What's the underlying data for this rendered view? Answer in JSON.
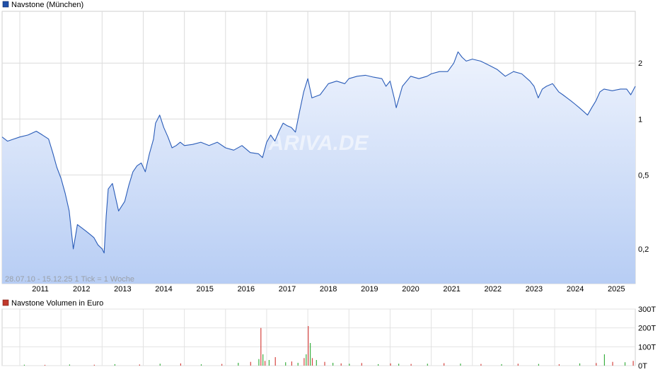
{
  "chart_data": [
    {
      "type": "area",
      "legend": {
        "label": "Navstone (München)",
        "color": "#1f4fa8"
      },
      "y_scale": "log",
      "ylim": [
        0.13,
        3.8
      ],
      "y_ticks": [
        {
          "value": 0.2,
          "label": "0,2"
        },
        {
          "value": 0.5,
          "label": "0,5"
        },
        {
          "value": 1,
          "label": "1"
        },
        {
          "value": 2,
          "label": "2"
        }
      ],
      "x_range": [
        2010.57,
        2025.96
      ],
      "x_ticks": [
        "2011",
        "2012",
        "2013",
        "2014",
        "2015",
        "2016",
        "2017",
        "2018",
        "2019",
        "2020",
        "2021",
        "2022",
        "2023",
        "2024",
        "2025"
      ],
      "info_text": "28.07.10 - 15.12.25   1 Tick = 1 Woche",
      "watermark": "ARIVA.DE",
      "grid": true,
      "line_color": "#2a5cb8",
      "fill_top": "#eef3fd",
      "fill_bottom": "#b7cdf4",
      "series": [
        {
          "x": [
            2010.57,
            2010.7,
            2010.85,
            2011.0,
            2011.2,
            2011.4,
            2011.55,
            2011.7,
            2011.8,
            2011.9,
            2012.0,
            2012.1,
            2012.2,
            2012.3,
            2012.4,
            2012.5,
            2012.6,
            2012.7,
            2012.8,
            2012.9,
            2013.0,
            2013.05,
            2013.1,
            2013.15,
            2013.25,
            2013.4,
            2013.55,
            2013.65,
            2013.75,
            2013.85,
            2013.95,
            2014.05,
            2014.15,
            2014.25,
            2014.3,
            2014.4,
            2014.5,
            2014.6,
            2014.7,
            2014.8,
            2014.9,
            2015.0,
            2015.2,
            2015.4,
            2015.6,
            2015.8,
            2016.0,
            2016.2,
            2016.4,
            2016.6,
            2016.8,
            2016.9,
            2017.0,
            2017.1,
            2017.2,
            2017.3,
            2017.4,
            2017.5,
            2017.6,
            2017.7,
            2017.8,
            2017.9,
            2018.0,
            2018.1,
            2018.3,
            2018.5,
            2018.7,
            2018.9,
            2019.0,
            2019.2,
            2019.4,
            2019.6,
            2019.8,
            2019.9,
            2020.0,
            2020.1,
            2020.15,
            2020.3,
            2020.5,
            2020.7,
            2020.9,
            2021.0,
            2021.2,
            2021.4,
            2021.55,
            2021.65,
            2021.75,
            2021.85,
            2022.0,
            2022.2,
            2022.4,
            2022.6,
            2022.8,
            2023.0,
            2023.2,
            2023.4,
            2023.5,
            2023.6,
            2023.7,
            2023.8,
            2023.95,
            2024.1,
            2024.2,
            2024.3,
            2024.4,
            2024.5,
            2024.6,
            2024.7,
            2024.8,
            2024.9,
            2025.0,
            2025.1,
            2025.2,
            2025.4,
            2025.6,
            2025.75,
            2025.85,
            2025.96
          ],
          "y": [
            0.8,
            0.76,
            0.78,
            0.8,
            0.82,
            0.86,
            0.82,
            0.78,
            0.66,
            0.55,
            0.48,
            0.4,
            0.32,
            0.2,
            0.27,
            0.26,
            0.25,
            0.24,
            0.23,
            0.21,
            0.2,
            0.19,
            0.3,
            0.42,
            0.45,
            0.32,
            0.36,
            0.44,
            0.52,
            0.56,
            0.58,
            0.52,
            0.65,
            0.78,
            0.95,
            1.05,
            0.9,
            0.8,
            0.7,
            0.72,
            0.75,
            0.72,
            0.73,
            0.75,
            0.72,
            0.75,
            0.7,
            0.68,
            0.72,
            0.66,
            0.65,
            0.62,
            0.75,
            0.82,
            0.76,
            0.86,
            0.95,
            0.92,
            0.9,
            0.85,
            1.1,
            1.4,
            1.65,
            1.3,
            1.35,
            1.55,
            1.6,
            1.55,
            1.65,
            1.7,
            1.72,
            1.68,
            1.65,
            1.5,
            1.6,
            1.3,
            1.15,
            1.5,
            1.7,
            1.65,
            1.7,
            1.75,
            1.8,
            1.8,
            2.0,
            2.3,
            2.15,
            2.05,
            2.1,
            2.05,
            1.95,
            1.85,
            1.7,
            1.8,
            1.75,
            1.6,
            1.5,
            1.3,
            1.45,
            1.5,
            1.55,
            1.4,
            1.35,
            1.3,
            1.25,
            1.2,
            1.15,
            1.1,
            1.05,
            1.15,
            1.25,
            1.4,
            1.45,
            1.42,
            1.45,
            1.45,
            1.35,
            1.5
          ]
        }
      ]
    },
    {
      "type": "bar",
      "legend": {
        "label": "Navstone Volumen in Euro",
        "color": "#c0392b"
      },
      "ylim": [
        0,
        300
      ],
      "y_ticks": [
        {
          "value": 0,
          "label": "0T"
        },
        {
          "value": 100,
          "label": "100T"
        },
        {
          "value": 200,
          "label": "200T"
        },
        {
          "value": 300,
          "label": "300T"
        }
      ],
      "bar_colors": [
        "#3cb043",
        "#d64541"
      ],
      "series": [
        {
          "x": [
            2011.1,
            2011.6,
            2012.2,
            2012.8,
            2013.3,
            2013.9,
            2014.4,
            2014.9,
            2015.4,
            2015.9,
            2016.3,
            2016.6,
            2016.8,
            2016.85,
            2016.9,
            2016.95,
            2017.05,
            2017.2,
            2017.45,
            2017.6,
            2017.75,
            2017.9,
            2017.95,
            2018.0,
            2018.05,
            2018.1,
            2018.2,
            2018.4,
            2018.6,
            2018.8,
            2019.0,
            2019.3,
            2019.7,
            2020.0,
            2020.2,
            2020.5,
            2020.9,
            2021.3,
            2021.7,
            2022.2,
            2022.7,
            2023.1,
            2023.6,
            2024.1,
            2024.6,
            2025.0,
            2025.2,
            2025.4,
            2025.7,
            2025.9
          ],
          "y": [
            5,
            4,
            6,
            5,
            8,
            6,
            10,
            12,
            7,
            9,
            15,
            20,
            35,
            200,
            60,
            25,
            30,
            45,
            18,
            22,
            15,
            40,
            60,
            210,
            120,
            40,
            30,
            20,
            15,
            12,
            10,
            14,
            8,
            12,
            10,
            9,
            10,
            13,
            11,
            9,
            8,
            10,
            9,
            7,
            12,
            14,
            60,
            20,
            18,
            25
          ]
        }
      ]
    }
  ]
}
